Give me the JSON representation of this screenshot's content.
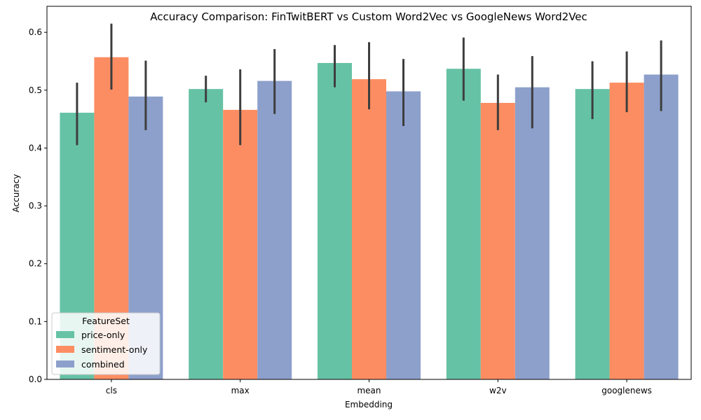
{
  "chart_data": {
    "type": "bar",
    "title": "Accuracy Comparison: FinTwitBERT vs Custom Word2Vec vs GoogleNews Word2Vec",
    "xlabel": "Embedding",
    "ylabel": "Accuracy",
    "categories": [
      "cls",
      "max",
      "mean",
      "w2v",
      "googlenews"
    ],
    "ylim": [
      0,
      0.645
    ],
    "yticks": [
      0.0,
      0.1,
      0.2,
      0.3,
      0.4,
      0.5,
      0.6
    ],
    "ytick_labels": [
      "0.0",
      "0.1",
      "0.2",
      "0.3",
      "0.4",
      "0.5",
      "0.6"
    ],
    "grid": false,
    "legend": {
      "title": "FeatureSet",
      "placement": "lower-left"
    },
    "series": [
      {
        "name": "price-only",
        "color": "#66c2a5",
        "values": [
          0.461,
          0.502,
          0.547,
          0.537,
          0.502
        ],
        "ci_low": [
          0.405,
          0.479,
          0.505,
          0.482,
          0.45
        ],
        "ci_high": [
          0.513,
          0.525,
          0.578,
          0.591,
          0.55
        ]
      },
      {
        "name": "sentiment-only",
        "color": "#fc8d62",
        "values": [
          0.557,
          0.466,
          0.519,
          0.478,
          0.513
        ],
        "ci_low": [
          0.501,
          0.405,
          0.467,
          0.431,
          0.462
        ],
        "ci_high": [
          0.615,
          0.536,
          0.583,
          0.527,
          0.567
        ]
      },
      {
        "name": "combined",
        "color": "#8da0cb",
        "values": [
          0.489,
          0.516,
          0.498,
          0.505,
          0.527
        ],
        "ci_low": [
          0.431,
          0.459,
          0.438,
          0.434,
          0.464
        ],
        "ci_high": [
          0.551,
          0.571,
          0.554,
          0.559,
          0.586
        ]
      }
    ],
    "errorbar_color": "#3d3d3d"
  }
}
